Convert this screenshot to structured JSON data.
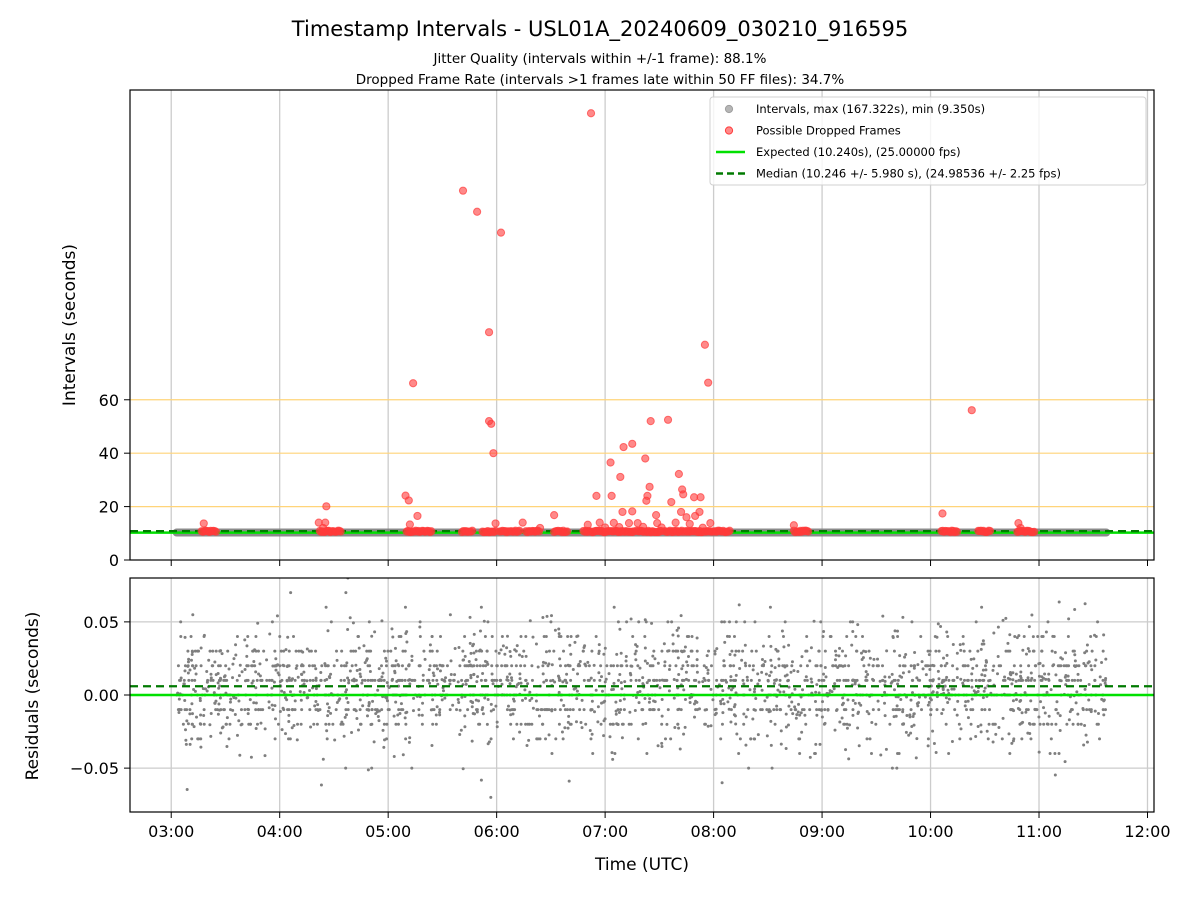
{
  "chart_data": [
    {
      "type": "scatter",
      "panel": "top",
      "title": "Timestamp Intervals - USL01A_20240609_030210_916595",
      "subtitle_lines": [
        "Jitter Quality (intervals within +/-1 frame): 88.1%",
        "Dropped Frame Rate (intervals >1 frames late within 50 FF files): 34.7%"
      ],
      "ylabel": "Intervals (seconds)",
      "xlabel": "",
      "xlim": [
        2.62,
        12.06
      ],
      "ylim": [
        0,
        176
      ],
      "yticks": [
        0,
        20,
        40,
        60
      ],
      "ytick_labels": [
        "0",
        "20",
        "40",
        "60"
      ],
      "xticks": [
        3,
        4,
        5,
        6,
        7,
        8,
        9,
        10,
        11,
        12
      ],
      "grid": "x",
      "reference_lines": [
        {
          "y": 20,
          "color": "#ffd479"
        },
        {
          "y": 40,
          "color": "#ffd479"
        },
        {
          "y": 60,
          "color": "#ffd479"
        }
      ],
      "legend": {
        "placement": "top-right",
        "entries": [
          {
            "label": "Intervals, max (167.322s), min (9.350s)",
            "kind": "marker",
            "color": "#9e9e9e"
          },
          {
            "label": "Possible Dropped Frames",
            "kind": "marker",
            "color": "#ff3b3b"
          },
          {
            "label": "Expected (10.240s), (25.00000 fps)",
            "kind": "line",
            "color": "#00e000"
          },
          {
            "label": "Median (10.246 +/- 5.980 s), (24.98536 +/- 2.25 fps)",
            "kind": "dashed",
            "color": "#007a00"
          }
        ]
      },
      "series": [
        {
          "name": "Intervals",
          "color": "#7f7f7f",
          "band": {
            "x": [
              3.05,
              11.62
            ],
            "y": 10.3
          }
        },
        {
          "name": "Expected",
          "color": "#00e000",
          "y": 10.24
        },
        {
          "name": "Median",
          "color": "#007a00",
          "y": 10.246
        },
        {
          "name": "Possible Dropped Frames",
          "color": "#ff3b3b",
          "points": [
            [
              6.87,
              167.3
            ],
            [
              5.69,
              138.3
            ],
            [
              5.82,
              130.4
            ],
            [
              6.04,
              122.6
            ],
            [
              5.93,
              85.3
            ],
            [
              7.92,
              80.6
            ],
            [
              7.95,
              66.4
            ],
            [
              5.23,
              66.2
            ],
            [
              10.38,
              56.1
            ],
            [
              5.93,
              52.0
            ],
            [
              5.95,
              51.0
            ],
            [
              7.42,
              52.0
            ],
            [
              7.58,
              52.5
            ],
            [
              5.97,
              40.0
            ],
            [
              7.25,
              43.5
            ],
            [
              7.17,
              42.3
            ],
            [
              7.37,
              38.0
            ],
            [
              7.05,
              36.5
            ],
            [
              7.14,
              31.1
            ],
            [
              7.68,
              32.2
            ],
            [
              7.41,
              27.4
            ],
            [
              7.71,
              26.4
            ],
            [
              7.72,
              24.6
            ],
            [
              7.39,
              24.0
            ],
            [
              5.16,
              24.1
            ],
            [
              5.19,
              22.3
            ],
            [
              6.92,
              24.0
            ],
            [
              7.06,
              24.0
            ],
            [
              7.82,
              23.5
            ],
            [
              7.88,
              23.5
            ],
            [
              7.38,
              22.2
            ],
            [
              7.16,
              18.0
            ],
            [
              7.25,
              18.2
            ],
            [
              7.47,
              16.8
            ],
            [
              7.61,
              21.7
            ],
            [
              7.7,
              18.0
            ],
            [
              7.75,
              16.0
            ],
            [
              7.83,
              16.5
            ],
            [
              7.87,
              18.0
            ],
            [
              4.43,
              20.1
            ],
            [
              10.11,
              17.4
            ],
            [
              6.53,
              16.8
            ],
            [
              5.27,
              16.5
            ],
            [
              3.3,
              13.7
            ],
            [
              4.36,
              14.0
            ],
            [
              4.42,
              14.0
            ],
            [
              4.4,
              12.0
            ],
            [
              5.2,
              13.3
            ],
            [
              6.24,
              14.0
            ],
            [
              5.99,
              13.7
            ],
            [
              6.84,
              13.2
            ],
            [
              6.95,
              14.0
            ],
            [
              7.08,
              13.9
            ],
            [
              7.22,
              13.8
            ],
            [
              7.3,
              13.8
            ],
            [
              7.48,
              13.8
            ],
            [
              7.65,
              14.0
            ],
            [
              7.78,
              13.5
            ],
            [
              7.97,
              13.8
            ],
            [
              8.74,
              13.0
            ],
            [
              10.81,
              13.8
            ],
            [
              10.83,
              12.0
            ],
            [
              7.0,
              12.2
            ],
            [
              7.13,
              12.3
            ],
            [
              7.35,
              12.4
            ],
            [
              7.52,
              12.2
            ],
            [
              7.9,
              12.1
            ],
            [
              6.4,
              12.0
            ]
          ],
          "clusters": [
            [
              3.28,
              3.42
            ],
            [
              4.37,
              4.57
            ],
            [
              5.17,
              5.4
            ],
            [
              5.68,
              5.78
            ],
            [
              5.87,
              6.0
            ],
            [
              6.03,
              6.22
            ],
            [
              6.27,
              6.4
            ],
            [
              6.53,
              6.66
            ],
            [
              6.8,
              7.04
            ],
            [
              7.06,
              7.27
            ],
            [
              7.29,
              7.52
            ],
            [
              7.55,
              7.72
            ],
            [
              7.74,
              8.15
            ],
            [
              8.74,
              8.88
            ],
            [
              10.1,
              10.25
            ],
            [
              10.44,
              10.55
            ],
            [
              10.8,
              10.96
            ]
          ]
        }
      ]
    },
    {
      "type": "scatter",
      "panel": "bottom",
      "title": "",
      "xlabel": "Time (UTC)",
      "ylabel": "Residuals (seconds)",
      "xlim": [
        2.62,
        12.06
      ],
      "ylim": [
        -0.08,
        0.08
      ],
      "yticks": [
        -0.05,
        0.0,
        0.05
      ],
      "ytick_labels": [
        "−0.05",
        "0.00",
        "0.05"
      ],
      "xticks": [
        3,
        4,
        5,
        6,
        7,
        8,
        9,
        10,
        11,
        12
      ],
      "xtick_labels": [
        "03:00",
        "04:00",
        "05:00",
        "06:00",
        "07:00",
        "08:00",
        "09:00",
        "10:00",
        "11:00",
        "12:00"
      ],
      "grid": "both",
      "series": [
        {
          "name": "Residuals",
          "color": "#7f7f7f",
          "x_range": [
            3.05,
            11.62
          ],
          "center": 0.005,
          "spread": 0.02,
          "count": 2400
        },
        {
          "name": "Expected",
          "color": "#00e000",
          "y": 0.0
        },
        {
          "name": "Median",
          "color": "#007a00",
          "y": 0.006
        }
      ]
    }
  ]
}
